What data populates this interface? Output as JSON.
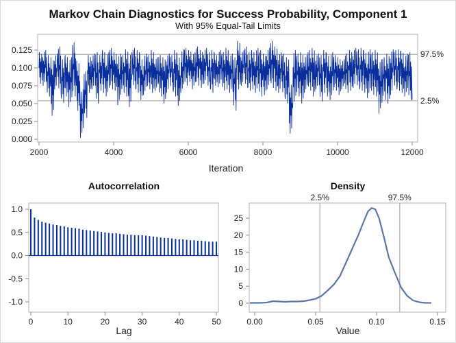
{
  "title": "Markov Chain Diagnostics for Success Probability, Component 1",
  "subtitle": "With 95% Equal-Tail Limits",
  "colors": {
    "trace": "#0a2f9c",
    "acf": "#0a2f9c",
    "density": "#5a76a8",
    "reference": "#b0b0b0"
  },
  "chart_data": [
    {
      "type": "line",
      "name": "trace",
      "xlabel": "Iteration",
      "ylabel": "",
      "xlim": [
        2000,
        12000
      ],
      "ylim": [
        0,
        0.138
      ],
      "xticks": [
        "2000",
        "4000",
        "6000",
        "8000",
        "10000",
        "12000"
      ],
      "yticks": [
        "0.000",
        "0.025",
        "0.050",
        "0.075",
        "0.100",
        "0.125"
      ],
      "reference_lines": [
        {
          "label": "97.5%",
          "value": 0.119
        },
        {
          "label": "2.5%",
          "value": 0.054
        }
      ],
      "bin_start": 2000,
      "bin_width": 100,
      "bin_low": [
        0.078,
        0.075,
        0.06,
        0.033,
        0.07,
        0.065,
        0.051,
        0.06,
        0.045,
        0.06,
        0.04,
        0.002,
        0.03,
        0.065,
        0.07,
        0.05,
        0.068,
        0.065,
        0.06,
        0.07,
        0.068,
        0.048,
        0.065,
        0.06,
        0.045,
        0.07,
        0.065,
        0.055,
        0.062,
        0.07,
        0.065,
        0.068,
        0.06,
        0.05,
        0.065,
        0.07,
        0.06,
        0.047,
        0.065,
        0.075,
        0.08,
        0.07,
        0.075,
        0.072,
        0.078,
        0.07,
        0.065,
        0.075,
        0.073,
        0.068,
        0.07,
        0.065,
        0.04,
        0.07,
        0.075,
        0.072,
        0.068,
        0.07,
        0.065,
        0.06,
        0.062,
        0.07,
        0.072,
        0.068,
        0.065,
        0.06,
        0.05,
        0.008,
        0.045,
        0.06,
        0.05,
        0.065,
        0.068,
        0.06,
        0.07,
        0.053,
        0.065,
        0.06,
        0.055,
        0.068,
        0.062,
        0.07,
        0.065,
        0.068,
        0.072,
        0.07,
        0.068,
        0.065,
        0.058,
        0.062,
        0.06,
        0.036,
        0.055,
        0.05,
        0.062,
        0.07,
        0.068,
        0.065,
        0.06,
        0.055
      ],
      "bin_high": [
        0.122,
        0.125,
        0.118,
        0.115,
        0.12,
        0.13,
        0.112,
        0.118,
        0.115,
        0.136,
        0.11,
        0.07,
        0.095,
        0.118,
        0.12,
        0.122,
        0.118,
        0.125,
        0.122,
        0.128,
        0.122,
        0.12,
        0.118,
        0.126,
        0.122,
        0.128,
        0.125,
        0.115,
        0.12,
        0.118,
        0.125,
        0.115,
        0.118,
        0.115,
        0.12,
        0.118,
        0.125,
        0.118,
        0.126,
        0.128,
        0.125,
        0.122,
        0.13,
        0.125,
        0.128,
        0.122,
        0.125,
        0.12,
        0.125,
        0.122,
        0.128,
        0.12,
        0.115,
        0.138,
        0.125,
        0.13,
        0.122,
        0.125,
        0.128,
        0.125,
        0.12,
        0.128,
        0.138,
        0.13,
        0.122,
        0.12,
        0.115,
        0.08,
        0.125,
        0.12,
        0.122,
        0.118,
        0.125,
        0.128,
        0.12,
        0.118,
        0.125,
        0.12,
        0.122,
        0.118,
        0.115,
        0.112,
        0.12,
        0.125,
        0.128,
        0.126,
        0.128,
        0.124,
        0.126,
        0.122,
        0.125,
        0.112,
        0.115,
        0.12,
        0.126,
        0.125,
        0.126,
        0.124,
        0.12,
        0.122
      ]
    },
    {
      "type": "bar",
      "title": "Autocorrelation",
      "xlabel": "Lag",
      "xlim": [
        0,
        50
      ],
      "ylim": [
        -1,
        1
      ],
      "xticks": [
        "0",
        "10",
        "20",
        "30",
        "40",
        "50"
      ],
      "yticks": [
        "-1.0",
        "-0.5",
        "0.0",
        "0.5",
        "1.0"
      ],
      "lags": [
        0,
        1,
        2,
        3,
        4,
        5,
        6,
        7,
        8,
        9,
        10,
        11,
        12,
        13,
        14,
        15,
        16,
        17,
        18,
        19,
        20,
        21,
        22,
        23,
        24,
        25,
        26,
        27,
        28,
        29,
        30,
        31,
        32,
        33,
        34,
        35,
        36,
        37,
        38,
        39,
        40,
        41,
        42,
        43,
        44,
        45,
        46,
        47,
        48,
        49,
        50
      ],
      "values": [
        1.0,
        0.82,
        0.77,
        0.73,
        0.71,
        0.69,
        0.67,
        0.66,
        0.64,
        0.63,
        0.61,
        0.6,
        0.59,
        0.58,
        0.56,
        0.55,
        0.54,
        0.53,
        0.52,
        0.51,
        0.5,
        0.49,
        0.48,
        0.48,
        0.47,
        0.46,
        0.45,
        0.45,
        0.44,
        0.44,
        0.44,
        0.43,
        0.42,
        0.41,
        0.4,
        0.39,
        0.38,
        0.38,
        0.37,
        0.36,
        0.35,
        0.35,
        0.34,
        0.33,
        0.33,
        0.32,
        0.32,
        0.31,
        0.3,
        0.3,
        0.3
      ]
    },
    {
      "type": "line",
      "title": "Density",
      "xlabel": "Value",
      "xlim": [
        -0.006,
        0.15
      ],
      "ylim": [
        0,
        29
      ],
      "xticks": [
        "0.00",
        "0.05",
        "0.10",
        "0.15"
      ],
      "yticks": [
        "0",
        "5",
        "10",
        "15",
        "20",
        "25"
      ],
      "reference_lines": [
        {
          "label": "2.5%",
          "value": 0.0535
        },
        {
          "label": "97.5%",
          "value": 0.119
        }
      ],
      "x": [
        -0.004,
        0.005,
        0.01,
        0.015,
        0.02,
        0.025,
        0.03,
        0.035,
        0.04,
        0.045,
        0.05,
        0.055,
        0.06,
        0.065,
        0.07,
        0.075,
        0.08,
        0.085,
        0.09,
        0.093,
        0.096,
        0.099,
        0.102,
        0.106,
        0.11,
        0.115,
        0.12,
        0.125,
        0.13,
        0.135,
        0.14,
        0.145
      ],
      "y": [
        0.1,
        0.1,
        0.2,
        0.6,
        0.5,
        0.4,
        0.5,
        0.5,
        0.6,
        0.9,
        1.3,
        2.2,
        3.8,
        5.5,
        8.0,
        12.0,
        16.0,
        20.0,
        24.5,
        27.0,
        28.0,
        27.6,
        25.0,
        19.5,
        13.5,
        9.0,
        4.7,
        2.2,
        0.8,
        0.3,
        0.1,
        0.1
      ]
    }
  ]
}
